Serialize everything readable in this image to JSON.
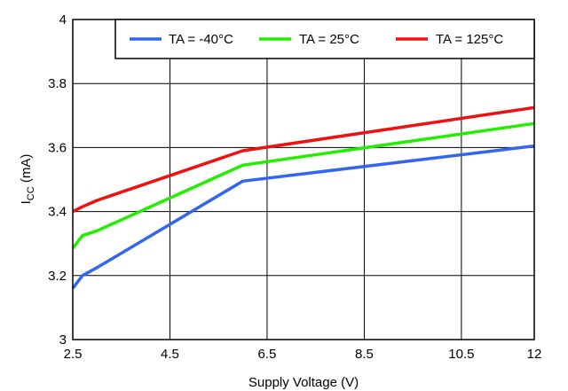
{
  "chart_data": {
    "type": "line",
    "title": "",
    "xlabel": "Supply Voltage (V)",
    "ylabel_main": "I",
    "ylabel_sub": "CC",
    "ylabel_unit": " (mA)",
    "xlim": [
      2.5,
      12
    ],
    "ylim": [
      3,
      4
    ],
    "x_ticks": [
      2.5,
      4.5,
      6.5,
      8.5,
      10.5,
      12
    ],
    "x_tick_labels": [
      "2.5",
      "4.5",
      "6.5",
      "8.5",
      "10.5",
      "12"
    ],
    "y_ticks": [
      3,
      3.2,
      3.4,
      3.6,
      3.8,
      4
    ],
    "y_tick_labels": [
      "3",
      "3.2",
      "3.4",
      "3.6",
      "3.8",
      "4"
    ],
    "grid": true,
    "legend_position": "top-right",
    "series": [
      {
        "name": "TA = -40°C",
        "color": "#3366ee",
        "x": [
          2.5,
          2.7,
          3.0,
          6.0,
          12.0
        ],
        "y": [
          3.16,
          3.2,
          3.225,
          3.495,
          3.605
        ]
      },
      {
        "name": "TA = 25°C",
        "color": "#22ee00",
        "x": [
          2.5,
          2.7,
          3.0,
          6.0,
          12.0
        ],
        "y": [
          3.285,
          3.325,
          3.34,
          3.545,
          3.675
        ]
      },
      {
        "name": "TA = 125°C",
        "color": "#ee1111",
        "x": [
          2.5,
          2.7,
          3.0,
          6.0,
          12.0
        ],
        "y": [
          3.4,
          3.415,
          3.435,
          3.59,
          3.725
        ]
      }
    ]
  }
}
